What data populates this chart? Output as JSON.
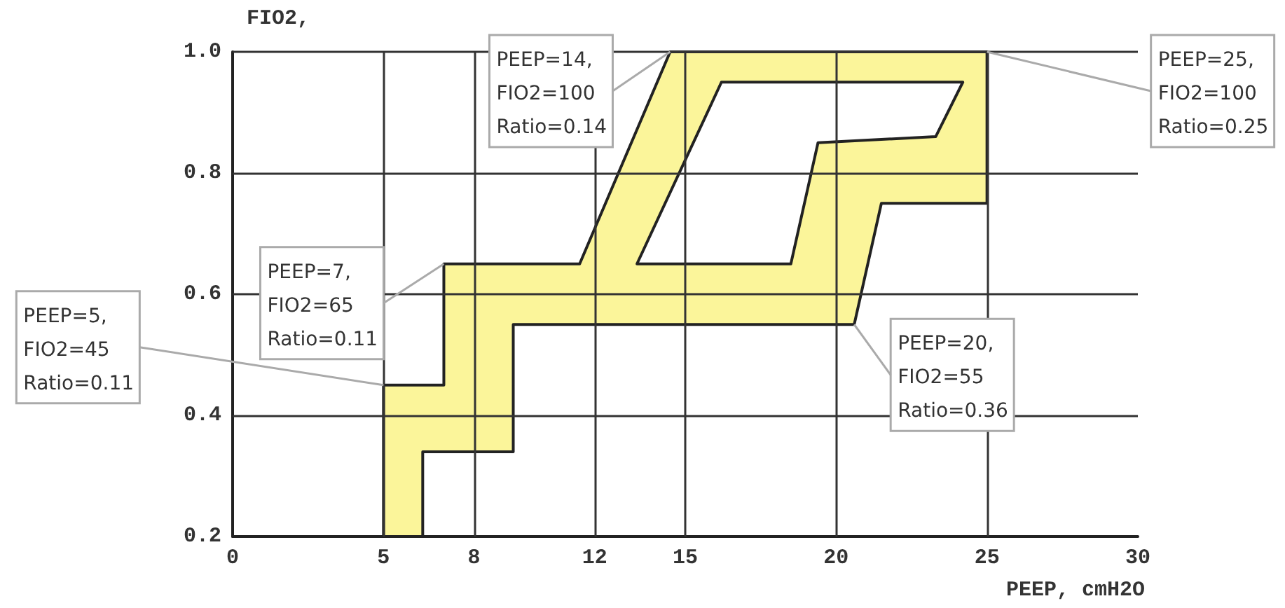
{
  "chart_data": {
    "type": "area",
    "xlabel": "PEEP, cmH2O",
    "ylabel": "FIO2,",
    "xlim": [
      0,
      30
    ],
    "xticks": [
      0,
      5,
      8,
      12,
      15,
      20,
      25,
      30
    ],
    "ylim": [
      0.2,
      1.0
    ],
    "yticks": [
      0.2,
      0.4,
      0.6,
      0.8,
      {
        "value": 1.0,
        "label": "1.0"
      }
    ],
    "grid": true,
    "series": [
      {
        "color": "#fbf59a",
        "x": [
          5,
          5,
          7,
          7,
          11.5,
          14.5,
          25,
          25,
          21.5,
          20.6,
          9.3,
          9.3,
          6.3,
          6.3
        ],
        "values": [
          0.2,
          0.45,
          0.45,
          0.65,
          0.65,
          1.0,
          1.0,
          0.75,
          0.75,
          0.55,
          0.55,
          0.34,
          0.34,
          0.2
        ]
      },
      {
        "color": "#ffffff",
        "x": [
          16.2,
          24.2,
          23.3,
          19.4,
          18.5,
          13.4
        ],
        "values": [
          0.95,
          0.95,
          0.86,
          0.85,
          0.65,
          0.65
        ]
      }
    ],
    "annotations": [
      {
        "text": "PEEP=5,\nFIO2=45\nRatio=0.11",
        "x": 5,
        "y": 0.45
      },
      {
        "text": "PEEP=7,\nFIO2=65\nRatio=0.11",
        "x": 7,
        "y": 0.65
      },
      {
        "text": "PEEP=14,\nFIO2=100\nRatio=0.14",
        "x": 14.5,
        "y": 1.0
      },
      {
        "text": "PEEP=25,\nFIO2=100\nRatio=0.25",
        "x": 25,
        "y": 1.0
      },
      {
        "text": "PEEP=20,\nFIO2=55\nRatio=0.36",
        "x": 20.6,
        "y": 0.55
      }
    ]
  }
}
